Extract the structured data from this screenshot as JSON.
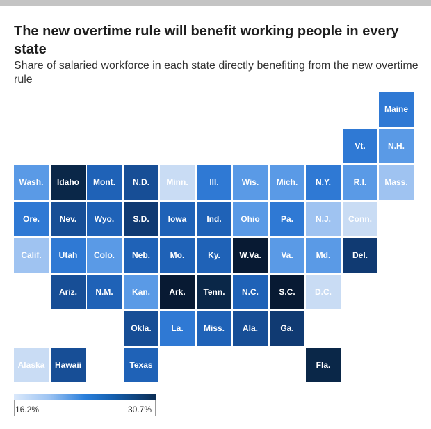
{
  "header": {
    "title": "The new overtime rule will benefit working people in every state",
    "subtitle": "Share of salaried workforce in each state directly benefiting from the new overtime rule"
  },
  "legend": {
    "min_label": "16.2%",
    "max_label": "30.7%",
    "min_value": 16.2,
    "max_value": 30.7
  },
  "colors": {
    "c1": "#c9dcf4",
    "c2": "#9fc3f1",
    "c3": "#5a9ae6",
    "c4": "#2f79d4",
    "c5": "#1f62b7",
    "c6": "#174e96",
    "c7": "#103a72",
    "c8": "#0a2748",
    "c9": "#081a33"
  },
  "states": [
    {
      "label": "Maine",
      "row": 0,
      "col": 10,
      "level": 4
    },
    {
      "label": "Vt.",
      "row": 1,
      "col": 9,
      "level": 4
    },
    {
      "label": "N.H.",
      "row": 1,
      "col": 10,
      "level": 3
    },
    {
      "label": "Wash.",
      "row": 2,
      "col": 0,
      "level": 3
    },
    {
      "label": "Idaho",
      "row": 2,
      "col": 1,
      "level": 8
    },
    {
      "label": "Mont.",
      "row": 2,
      "col": 2,
      "level": 5
    },
    {
      "label": "N.D.",
      "row": 2,
      "col": 3,
      "level": 6
    },
    {
      "label": "Minn.",
      "row": 2,
      "col": 4,
      "level": 1
    },
    {
      "label": "Ill.",
      "row": 2,
      "col": 5,
      "level": 4
    },
    {
      "label": "Wis.",
      "row": 2,
      "col": 6,
      "level": 3
    },
    {
      "label": "Mich.",
      "row": 2,
      "col": 7,
      "level": 3
    },
    {
      "label": "N.Y.",
      "row": 2,
      "col": 8,
      "level": 4
    },
    {
      "label": "R.I.",
      "row": 2,
      "col": 9,
      "level": 3
    },
    {
      "label": "Mass.",
      "row": 2,
      "col": 10,
      "level": 2
    },
    {
      "label": "Ore.",
      "row": 3,
      "col": 0,
      "level": 4
    },
    {
      "label": "Nev.",
      "row": 3,
      "col": 1,
      "level": 6
    },
    {
      "label": "Wyo.",
      "row": 3,
      "col": 2,
      "level": 5
    },
    {
      "label": "S.D.",
      "row": 3,
      "col": 3,
      "level": 7
    },
    {
      "label": "Iowa",
      "row": 3,
      "col": 4,
      "level": 5
    },
    {
      "label": "Ind.",
      "row": 3,
      "col": 5,
      "level": 5
    },
    {
      "label": "Ohio",
      "row": 3,
      "col": 6,
      "level": 3
    },
    {
      "label": "Pa.",
      "row": 3,
      "col": 7,
      "level": 4
    },
    {
      "label": "N.J.",
      "row": 3,
      "col": 8,
      "level": 2
    },
    {
      "label": "Conn.",
      "row": 3,
      "col": 9,
      "level": 1
    },
    {
      "label": "Calif.",
      "row": 4,
      "col": 0,
      "level": 2
    },
    {
      "label": "Utah",
      "row": 4,
      "col": 1,
      "level": 4
    },
    {
      "label": "Colo.",
      "row": 4,
      "col": 2,
      "level": 3
    },
    {
      "label": "Neb.",
      "row": 4,
      "col": 3,
      "level": 5
    },
    {
      "label": "Mo.",
      "row": 4,
      "col": 4,
      "level": 5
    },
    {
      "label": "Ky.",
      "row": 4,
      "col": 5,
      "level": 5
    },
    {
      "label": "W.Va.",
      "row": 4,
      "col": 6,
      "level": 9
    },
    {
      "label": "Va.",
      "row": 4,
      "col": 7,
      "level": 3
    },
    {
      "label": "Md.",
      "row": 4,
      "col": 8,
      "level": 3
    },
    {
      "label": "Del.",
      "row": 4,
      "col": 9,
      "level": 7
    },
    {
      "label": "Ariz.",
      "row": 5,
      "col": 1,
      "level": 6
    },
    {
      "label": "N.M.",
      "row": 5,
      "col": 2,
      "level": 5
    },
    {
      "label": "Kan.",
      "row": 5,
      "col": 3,
      "level": 3
    },
    {
      "label": "Ark.",
      "row": 5,
      "col": 4,
      "level": 9
    },
    {
      "label": "Tenn.",
      "row": 5,
      "col": 5,
      "level": 8
    },
    {
      "label": "N.C.",
      "row": 5,
      "col": 6,
      "level": 5
    },
    {
      "label": "S.C.",
      "row": 5,
      "col": 7,
      "level": 9
    },
    {
      "label": "D.C.",
      "row": 5,
      "col": 8,
      "level": 1
    },
    {
      "label": "Okla.",
      "row": 6,
      "col": 3,
      "level": 6
    },
    {
      "label": "La.",
      "row": 6,
      "col": 4,
      "level": 4
    },
    {
      "label": "Miss.",
      "row": 6,
      "col": 5,
      "level": 5
    },
    {
      "label": "Ala.",
      "row": 6,
      "col": 6,
      "level": 6
    },
    {
      "label": "Ga.",
      "row": 6,
      "col": 7,
      "level": 7
    },
    {
      "label": "Alaska",
      "row": 7,
      "col": 0,
      "level": 1
    },
    {
      "label": "Hawaii",
      "row": 7,
      "col": 1,
      "level": 6
    },
    {
      "label": "Texas",
      "row": 7,
      "col": 3,
      "level": 5
    },
    {
      "label": "Fla.",
      "row": 7,
      "col": 8,
      "level": 8
    }
  ]
}
